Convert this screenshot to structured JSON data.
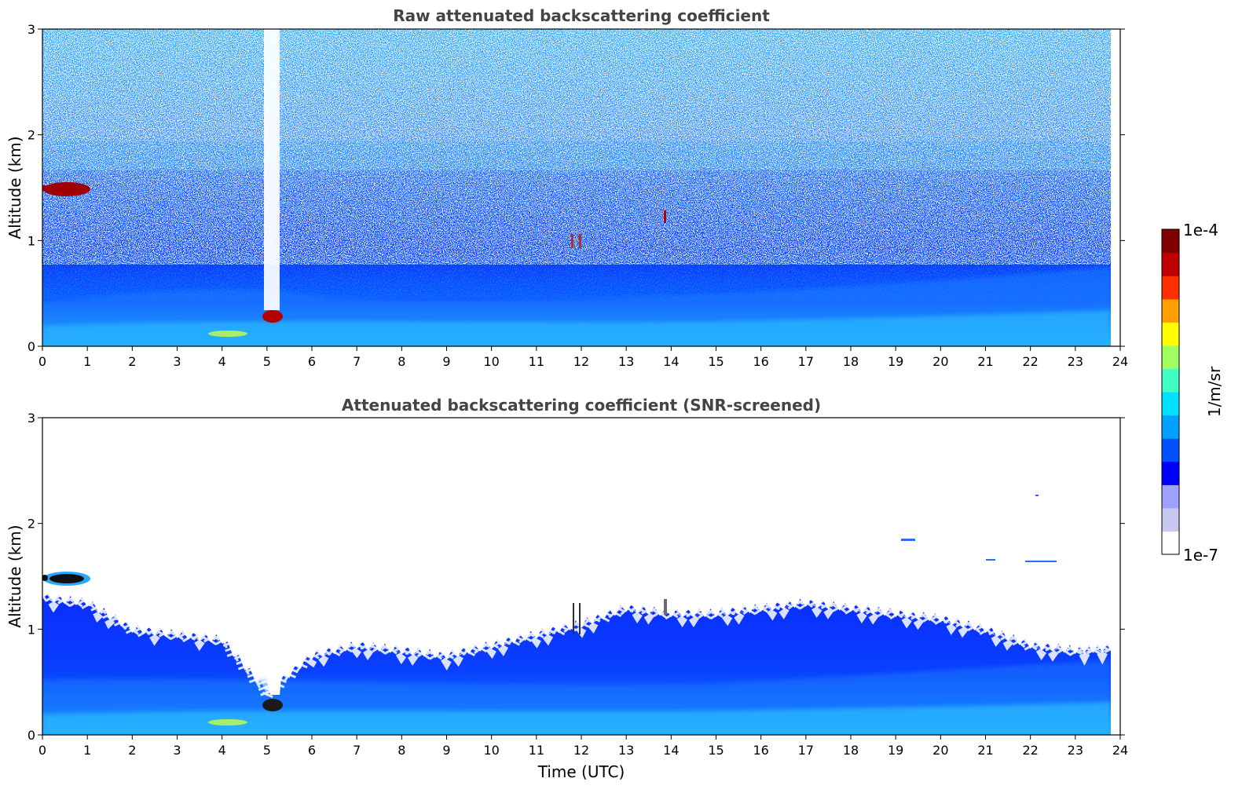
{
  "chart_data": [
    {
      "type": "heatmap",
      "title": "Raw attenuated backscattering coefficient",
      "xlabel": "",
      "ylabel": "Altitude (km)",
      "xlim": [
        0,
        24
      ],
      "ylim": [
        0,
        3
      ],
      "xticks": [
        "0",
        "1",
        "2",
        "3",
        "4",
        "5",
        "6",
        "7",
        "8",
        "9",
        "10",
        "11",
        "12",
        "13",
        "14",
        "15",
        "16",
        "17",
        "18",
        "19",
        "20",
        "21",
        "22",
        "23",
        "24"
      ],
      "yticks": [
        "0",
        "1",
        "2",
        "3"
      ],
      "colorscale": "jet",
      "features": [
        {
          "label": "cloud",
          "time": [
            0.5,
            1.0
          ],
          "altitude": 1.47
        },
        {
          "label": "cloud",
          "time": [
            4.9,
            5.3
          ],
          "altitude": 0.28
        },
        {
          "label": "cloud",
          "time": [
            11.7,
            12.0
          ],
          "altitude": 1.0
        },
        {
          "label": "cloud",
          "time": [
            13.8,
            13.9
          ],
          "altitude": 1.2
        }
      ]
    },
    {
      "type": "heatmap",
      "title": "Attenuated backscattering coefficient (SNR-screened)",
      "xlabel": "Time (UTC)",
      "ylabel": "Altitude (km)",
      "xlim": [
        0,
        24
      ],
      "ylim": [
        0,
        3
      ],
      "xticks": [
        "0",
        "1",
        "2",
        "3",
        "4",
        "5",
        "6",
        "7",
        "8",
        "9",
        "10",
        "11",
        "12",
        "13",
        "14",
        "15",
        "16",
        "17",
        "18",
        "19",
        "20",
        "21",
        "22",
        "23",
        "24"
      ],
      "yticks": [
        "0",
        "1",
        "2",
        "3"
      ],
      "colorscale": "jet",
      "top_of_valid_signal_km": {
        "time": [
          0,
          1,
          2,
          3,
          4,
          5,
          6,
          7,
          8,
          9,
          10,
          11,
          12,
          13,
          14,
          15,
          16,
          17,
          18,
          19,
          20,
          21,
          22,
          23,
          23.8
        ],
        "altitude": [
          1.3,
          1.25,
          1.0,
          0.95,
          0.9,
          0.4,
          0.75,
          0.85,
          0.8,
          0.75,
          0.85,
          0.95,
          1.05,
          1.2,
          1.15,
          1.15,
          1.2,
          1.25,
          1.2,
          1.15,
          1.1,
          1.0,
          0.85,
          0.8,
          0.82
        ]
      }
    }
  ],
  "colorbar": {
    "label": "1/m/sr",
    "max_label": "1e-4",
    "min_label": "1e-7",
    "colors": [
      "#ffffff",
      "#c8c8f0",
      "#a0a0ff",
      "#0000ff",
      "#0050ff",
      "#00a0ff",
      "#00e0ff",
      "#40ffc0",
      "#a0ff60",
      "#ffff00",
      "#ffa000",
      "#ff3000",
      "#c00000",
      "#800000"
    ]
  },
  "colors": {
    "background_low": "#0a3cff",
    "boundary_layer": "#1a8cff",
    "surface": "#22d0ff",
    "cloud_core": "#b00000",
    "screened": "#ffffff",
    "title": "#444444"
  }
}
